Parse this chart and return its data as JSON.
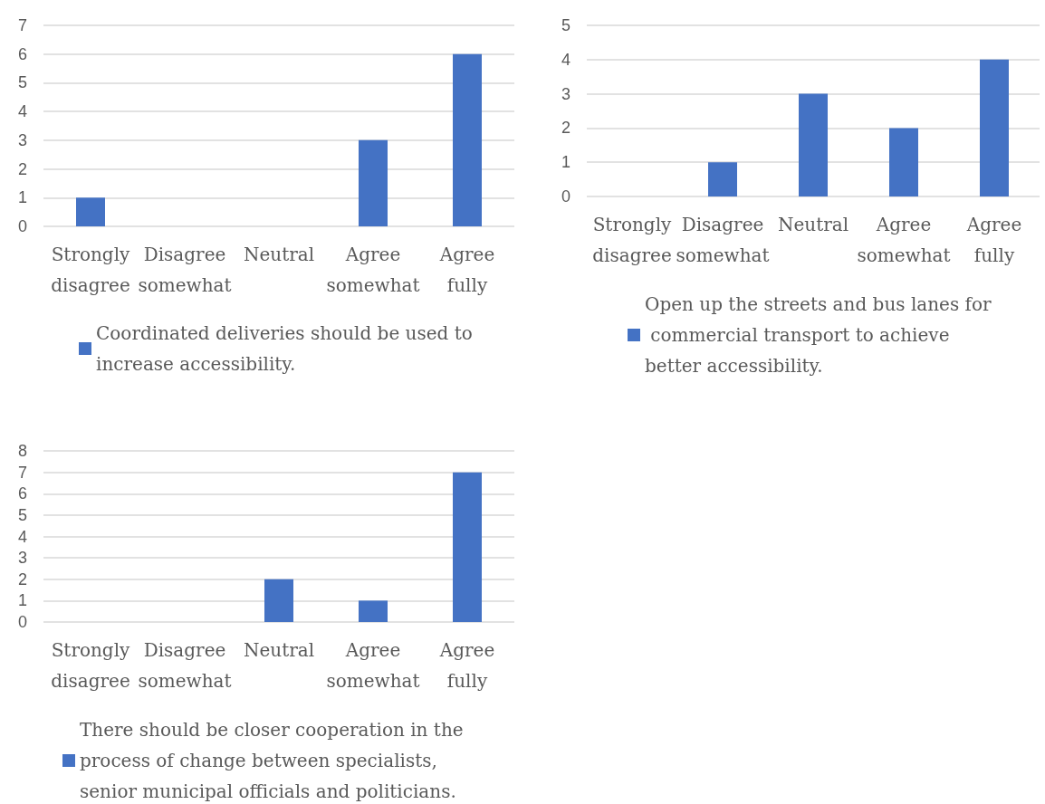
{
  "chart_data": [
    {
      "type": "bar",
      "categories": [
        "Strongly disagree",
        "Disagree somewhat",
        "Neutral",
        "Agree somewhat",
        "Agree fully"
      ],
      "series": [
        {
          "name": "Coordinated deliveries should be used to increase accessibility.",
          "color": "#4472c4",
          "values": [
            1,
            0,
            0,
            3,
            6
          ]
        }
      ],
      "ylim": [
        0,
        7
      ],
      "yticks": [
        0,
        1,
        2,
        3,
        4,
        5,
        6,
        7
      ],
      "grid": "y",
      "legend": "bottom"
    },
    {
      "type": "bar",
      "categories": [
        "Strongly disagree",
        "Disagree somewhat",
        "Neutral",
        "Agree somewhat",
        "Agree fully"
      ],
      "series": [
        {
          "name": "Open up the streets and bus lanes for commercial transport to achieve better accessibility.",
          "color": "#4472c4",
          "values": [
            0,
            1,
            3,
            2,
            4
          ]
        }
      ],
      "ylim": [
        0,
        5
      ],
      "yticks": [
        0,
        1,
        2,
        3,
        4,
        5
      ],
      "grid": "y",
      "legend": "bottom"
    },
    {
      "type": "bar",
      "categories": [
        "Strongly disagree",
        "Disagree somewhat",
        "Neutral",
        "Agree somewhat",
        "Agree fully"
      ],
      "series": [
        {
          "name": "There should be closer cooperation in the process of change between specialists, senior municipal officials and politicians.",
          "color": "#4472c4",
          "values": [
            0,
            0,
            2,
            1,
            7
          ]
        }
      ],
      "ylim": [
        0,
        8
      ],
      "yticks": [
        0,
        1,
        2,
        3,
        4,
        5,
        6,
        7,
        8
      ],
      "grid": "y",
      "legend": "bottom"
    }
  ]
}
